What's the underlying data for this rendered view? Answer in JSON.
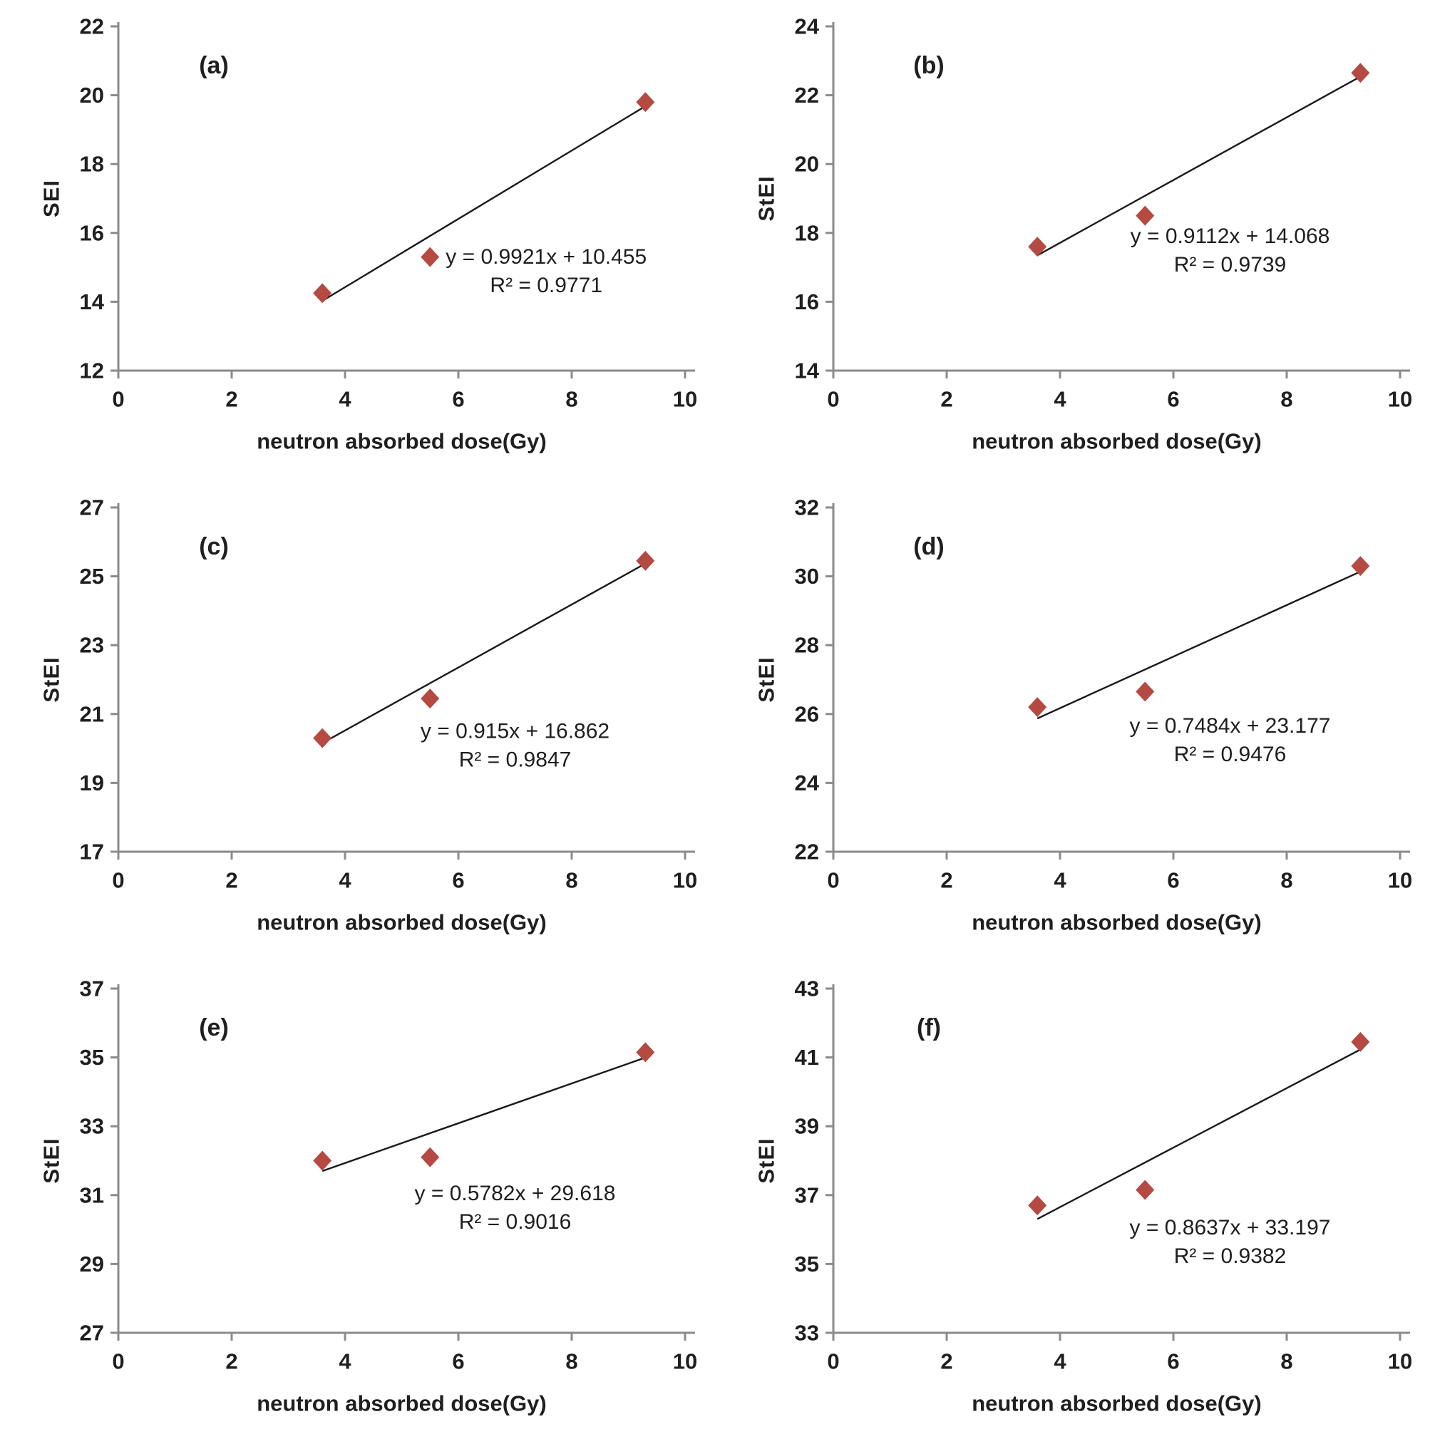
{
  "figure": {
    "background": "#ffffff",
    "marker_color": "#b54a42",
    "trend_line_color": "#1a1a1a",
    "axis_color": "#8b8b8b",
    "text_color": "#1f1f1f",
    "x_axis_label": "neutron absorbed dose(Gy)"
  },
  "chart_data": [
    {
      "panel_label": "(a)",
      "type": "scatter",
      "xlabel": "neutron absorbed dose(Gy)",
      "ylabel": "SEI",
      "xlim": [
        0,
        10
      ],
      "ylim": [
        12,
        22
      ],
      "xticks": [
        0,
        2,
        4,
        6,
        8,
        10
      ],
      "yticks": [
        12,
        14,
        16,
        18,
        20,
        22
      ],
      "x": [
        3.6,
        5.5,
        9.3
      ],
      "y": [
        14.25,
        15.3,
        19.8
      ],
      "fit": {
        "slope": 0.9921,
        "intercept": 10.455,
        "x_start": 3.6,
        "x_end": 9.3
      },
      "equation_text": "y = 0.9921x + 10.455",
      "r2_text": "R² = 0.9771",
      "eq_anchor": [
        7.55,
        15.3
      ],
      "grid": false,
      "legend": "none"
    },
    {
      "panel_label": "(b)",
      "type": "scatter",
      "xlabel": "neutron absorbed dose(Gy)",
      "ylabel": "StEI",
      "xlim": [
        0,
        10
      ],
      "ylim": [
        14,
        24
      ],
      "xticks": [
        0,
        2,
        4,
        6,
        8,
        10
      ],
      "yticks": [
        14,
        16,
        18,
        20,
        22,
        24
      ],
      "x": [
        3.6,
        5.5,
        9.3
      ],
      "y": [
        17.6,
        18.5,
        22.65
      ],
      "fit": {
        "slope": 0.9112,
        "intercept": 14.068,
        "x_start": 3.6,
        "x_end": 9.3
      },
      "equation_text": "y = 0.9112x + 14.068",
      "r2_text": "R² = 0.9739",
      "eq_anchor": [
        7.0,
        17.9
      ],
      "grid": false,
      "legend": "none"
    },
    {
      "panel_label": "(c)",
      "type": "scatter",
      "xlabel": "neutron absorbed dose(Gy)",
      "ylabel": "StEI",
      "xlim": [
        0,
        10
      ],
      "ylim": [
        17,
        27
      ],
      "xticks": [
        0,
        2,
        4,
        6,
        8,
        10
      ],
      "yticks": [
        17,
        19,
        21,
        23,
        25,
        27
      ],
      "x": [
        3.6,
        5.5,
        9.3
      ],
      "y": [
        20.3,
        21.45,
        25.45
      ],
      "fit": {
        "slope": 0.915,
        "intercept": 16.862,
        "x_start": 3.6,
        "x_end": 9.3
      },
      "equation_text": "y = 0.915x + 16.862",
      "r2_text": "R² = 0.9847",
      "eq_anchor": [
        7.0,
        20.5
      ],
      "grid": false,
      "legend": "none"
    },
    {
      "panel_label": "(d)",
      "type": "scatter",
      "xlabel": "neutron absorbed dose(Gy)",
      "ylabel": "StEI",
      "xlim": [
        0,
        10
      ],
      "ylim": [
        22,
        32
      ],
      "xticks": [
        0,
        2,
        4,
        6,
        8,
        10
      ],
      "yticks": [
        22,
        24,
        26,
        28,
        30,
        32
      ],
      "x": [
        3.6,
        5.5,
        9.3
      ],
      "y": [
        26.2,
        26.65,
        30.3
      ],
      "fit": {
        "slope": 0.7484,
        "intercept": 23.177,
        "x_start": 3.6,
        "x_end": 9.3
      },
      "equation_text": "y = 0.7484x + 23.177",
      "r2_text": "R² = 0.9476",
      "eq_anchor": [
        7.0,
        25.65
      ],
      "grid": false,
      "legend": "none"
    },
    {
      "panel_label": "(e)",
      "type": "scatter",
      "xlabel": "neutron absorbed dose(Gy)",
      "ylabel": "StEI",
      "xlim": [
        0,
        10
      ],
      "ylim": [
        27,
        37
      ],
      "xticks": [
        0,
        2,
        4,
        6,
        8,
        10
      ],
      "yticks": [
        27,
        29,
        31,
        33,
        35,
        37
      ],
      "x": [
        3.6,
        5.5,
        9.3
      ],
      "y": [
        32.0,
        32.1,
        35.15
      ],
      "fit": {
        "slope": 0.5782,
        "intercept": 29.618,
        "x_start": 3.6,
        "x_end": 9.3
      },
      "equation_text": "y = 0.5782x + 29.618",
      "r2_text": "R² = 0.9016",
      "eq_anchor": [
        7.0,
        31.05
      ],
      "grid": false,
      "legend": "none"
    },
    {
      "panel_label": "(f)",
      "type": "scatter",
      "xlabel": "neutron absorbed dose(Gy)",
      "ylabel": "StEI",
      "xlim": [
        0,
        10
      ],
      "ylim": [
        33,
        43
      ],
      "xticks": [
        0,
        2,
        4,
        6,
        8,
        10
      ],
      "yticks": [
        33,
        35,
        37,
        39,
        41,
        43
      ],
      "x": [
        3.6,
        5.5,
        9.3
      ],
      "y": [
        36.7,
        37.15,
        41.45
      ],
      "fit": {
        "slope": 0.8637,
        "intercept": 33.197,
        "x_start": 3.6,
        "x_end": 9.3
      },
      "equation_text": "y = 0.8637x + 33.197",
      "r2_text": "R² = 0.9382",
      "eq_anchor": [
        7.0,
        36.05
      ],
      "grid": false,
      "legend": "none"
    }
  ]
}
